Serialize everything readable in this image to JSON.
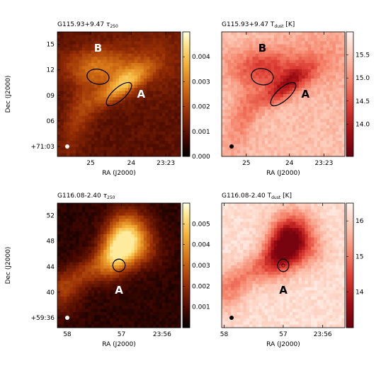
{
  "chart_data": [
    {
      "type": "heatmap",
      "title": "G115.93+9.47 τ₂₅₀",
      "field": "G115.93+9.47",
      "quantity": "tau250",
      "xlabel": "RA (J2000)",
      "ylabel": "Dec (J2000)",
      "x_ticks": [
        "25",
        "24",
        "23:23"
      ],
      "y_ticks": [
        "15",
        "12",
        "09",
        "06",
        "+71:03"
      ],
      "colorbar": {
        "ticks": [
          "0.000",
          "0.001",
          "0.002",
          "0.003",
          "0.004"
        ],
        "range": [
          0,
          0.005
        ]
      },
      "colormap": "afmhot",
      "labels": [
        "B",
        "A"
      ],
      "markers": [
        {
          "label": "B",
          "type": "ellipse"
        },
        {
          "label": "A",
          "type": "ellipse"
        }
      ],
      "beam": "white-dot"
    },
    {
      "type": "heatmap",
      "title": "G115.93+9.47 T_dust [K]",
      "field": "G115.93+9.47",
      "quantity": "Tdust",
      "xlabel": "RA (J2000)",
      "ylabel": "",
      "x_ticks": [
        "25",
        "24",
        "23:23"
      ],
      "y_ticks": [],
      "colorbar": {
        "ticks": [
          "15.5",
          "15.0",
          "14.5",
          "14.0"
        ],
        "range": [
          13.3,
          16.0
        ]
      },
      "colormap": "reds-reversed",
      "labels": [
        "B",
        "A"
      ],
      "markers": [
        {
          "label": "B",
          "type": "ellipse"
        },
        {
          "label": "A",
          "type": "ellipse"
        }
      ],
      "beam": "black-dot"
    },
    {
      "type": "heatmap",
      "title": "G116.08-2.40 τ₂₅₀",
      "field": "G116.08-2.40",
      "quantity": "tau250",
      "xlabel": "RA (J2000)",
      "ylabel": "Dec (J2000)",
      "x_ticks": [
        "58",
        "57",
        "23:56"
      ],
      "y_ticks": [
        "52",
        "48",
        "44",
        "40",
        "+59:36"
      ],
      "colorbar": {
        "ticks": [
          "0.005",
          "0.004",
          "0.003",
          "0.002",
          "0.001"
        ],
        "range": [
          0,
          0.006
        ]
      },
      "colormap": "afmhot",
      "labels": [
        "A"
      ],
      "markers": [
        {
          "label": "A",
          "type": "ellipse"
        }
      ],
      "beam": "white-dot"
    },
    {
      "type": "heatmap",
      "title": "G116.08-2.40 T_dust [K]",
      "field": "G116.08-2.40",
      "quantity": "Tdust",
      "xlabel": "RA (J2000)",
      "ylabel": "",
      "x_ticks": [
        "58",
        "57",
        "23:56"
      ],
      "y_ticks": [],
      "colorbar": {
        "ticks": [
          "16",
          "15",
          "14"
        ],
        "range": [
          13.0,
          16.5
        ]
      },
      "colormap": "reds-reversed",
      "labels": [
        "A"
      ],
      "markers": [
        {
          "label": "A",
          "type": "ellipse"
        }
      ],
      "beam": "black-dot"
    }
  ]
}
